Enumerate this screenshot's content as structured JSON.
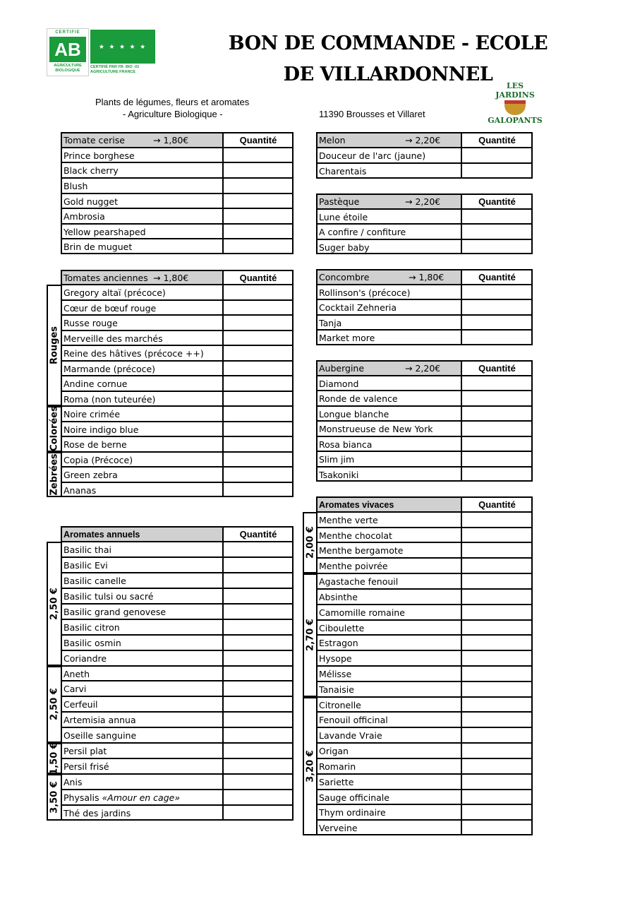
{
  "header": {
    "title": "BON DE COMMANDE - ECOLE DE VILLARDONNEL",
    "subtitle_line1": "Plants de légumes, fleurs et aromates",
    "subtitle_line2": "- Agriculture Biologique -",
    "address": "11390 Brousses et Villaret",
    "logo_ab": {
      "top": "CERTIFIE",
      "mark": "AB",
      "bottom": "AGRICULTURE BIOLOGIQUE"
    },
    "logo_eu": {
      "text": "CERTIFIÉ PAR FR- BIO -01 AGRICULTURE FRANCE"
    },
    "logo_jardins": "LES JARDINS GALOPANTS",
    "brand_green": "#1a9b3c"
  },
  "qty_label": "Quantité",
  "tables": [
    {
      "id": "tomate-cerise",
      "header": "Tomate cerise",
      "price": "→ 1,80€",
      "groups": [
        {
          "label": "",
          "items": [
            "Prince borghese",
            "Black cherry",
            "Blush",
            "Gold nugget",
            "Ambrosia",
            "Yellow pearshaped",
            "Brin de muguet"
          ]
        }
      ]
    },
    {
      "id": "tomates-anciennes",
      "header": "Tomates anciennes",
      "price": "→ 1,80€",
      "groups": [
        {
          "label": "Rouges",
          "items": [
            "Gregory altaï (précoce)",
            "Cœur de bœuf rouge",
            "Russe rouge",
            "Merveille des marchés",
            "Reine des hâtives (précoce ++)",
            "Marmande (précoce)",
            "Andine cornue",
            "Roma (non tuteurée)"
          ]
        },
        {
          "label": "Colorées",
          "items": [
            "Noire crimée",
            "Noire indigo blue",
            "Rose de berne"
          ]
        },
        {
          "label": "Zebrées",
          "items": [
            "Copia (Précoce)",
            "Green zebra",
            "Ananas"
          ]
        }
      ]
    },
    {
      "id": "aromates-annuels",
      "header": "Aromates annuels",
      "price": "",
      "groups": [
        {
          "label": "2,50 €",
          "items": [
            "Basilic thai",
            "Basilic Evi",
            "Basilic canelle",
            "Basilic tulsi ou sacré",
            "Basilic grand genovese",
            "Basilic citron",
            "Basilic osmin",
            "Coriandre"
          ]
        },
        {
          "label": "2,50 €",
          "items": [
            "Aneth",
            "Carvi",
            "Cerfeuil",
            "Artemisia annua",
            "Oseille sanguine"
          ]
        },
        {
          "label": "1,50 €",
          "items": [
            "Persil plat",
            "Persil frisé"
          ]
        },
        {
          "label": "3,50 €",
          "items": [
            "Anis",
            {
              "name": "Physalis ",
              "note": "«Amour en cage»"
            },
            "Thé des jardins"
          ]
        }
      ]
    },
    {
      "id": "melon",
      "header": "Melon",
      "price": "→ 2,20€",
      "groups": [
        {
          "label": "",
          "items": [
            "Douceur de l'arc (jaune)",
            "Charentais"
          ]
        }
      ]
    },
    {
      "id": "pasteque",
      "header": "Pastèque",
      "price": "→ 2,20€",
      "groups": [
        {
          "label": "",
          "items": [
            "Lune étoile",
            "A confire / confiture",
            "Suger baby"
          ]
        }
      ]
    },
    {
      "id": "concombre",
      "header": "Concombre",
      "price": "→ 1,80€",
      "groups": [
        {
          "label": "",
          "items": [
            "Rollinson's  (précoce)",
            "Cocktail Zehneria",
            "Tanja",
            "Market more"
          ]
        }
      ]
    },
    {
      "id": "aubergine",
      "header": "Aubergine",
      "price": "→ 2,20€",
      "groups": [
        {
          "label": "",
          "items": [
            "Diamond",
            "Ronde de valence",
            "Longue blanche",
            "Monstrueuse de New York",
            "Rosa bianca",
            "Slim jim",
            "Tsakoniki"
          ]
        }
      ]
    },
    {
      "id": "aromates-vivaces",
      "header": "Aromates vivaces",
      "price": "",
      "groups": [
        {
          "label": "2,00 €",
          "items": [
            "Menthe verte",
            "Menthe chocolat",
            "Menthe bergamote",
            "Menthe poivrée"
          ]
        },
        {
          "label": "2,70 €",
          "items": [
            "Agastache fenouil",
            "Absinthe",
            "Camomille romaine",
            "Ciboulette",
            "Estragon",
            "Hysope",
            "Mélisse",
            "Tanaisie"
          ]
        },
        {
          "label": "3,20 €",
          "items": [
            "Citronelle",
            "Fenouil officinal",
            "Lavande Vraie",
            "Origan",
            "Romarin",
            "Sariette",
            "Sauge officinale",
            "Thym ordinaire",
            "Verveine"
          ]
        }
      ]
    }
  ]
}
